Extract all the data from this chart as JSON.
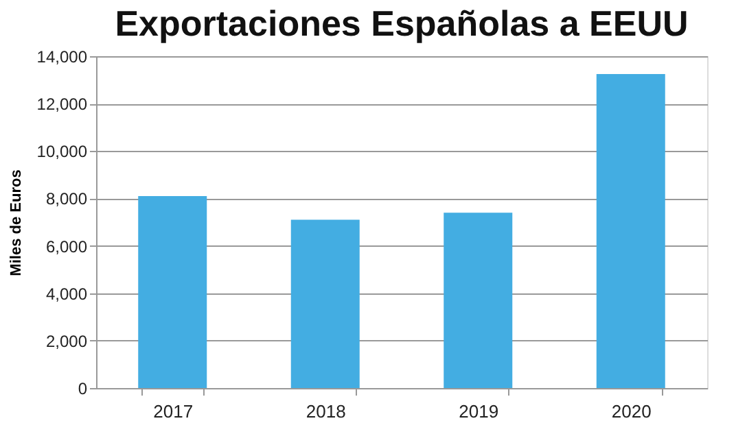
{
  "chart_data": {
    "type": "bar",
    "title": "Exportaciones Españolas a EEUU",
    "ylabel": "Miles de Euros",
    "categories": [
      "2017",
      "2018",
      "2019",
      "2020"
    ],
    "values": [
      8100,
      7100,
      7400,
      13250
    ],
    "color": "#43ade2",
    "ylim": [
      0,
      14000
    ],
    "yticks": [
      {
        "value": 0,
        "label": "0"
      },
      {
        "value": 2000,
        "label": "2,000"
      },
      {
        "value": 4000,
        "label": "4,000"
      },
      {
        "value": 6000,
        "label": "6,000"
      },
      {
        "value": 8000,
        "label": "8,000"
      },
      {
        "value": 10000,
        "label": "10,000"
      },
      {
        "value": 12000,
        "label": "12,000"
      },
      {
        "value": 14000,
        "label": "14,000"
      }
    ],
    "grid": "y"
  }
}
